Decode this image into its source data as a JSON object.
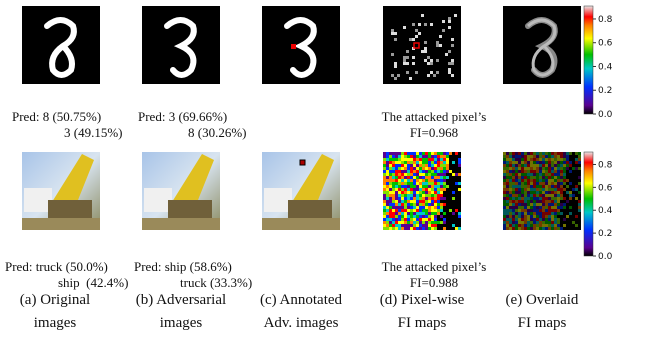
{
  "row1": {
    "original_caption": [
      "Pred: 8 (50.75%)",
      "3 (49.15%)"
    ],
    "adversarial_caption": [
      "Pred: 3 (69.66%)",
      "8 (30.26%)"
    ],
    "fi_caption": [
      "The attacked pixel’s",
      "FI=0.968"
    ]
  },
  "row2": {
    "original_caption": [
      "Pred: truck (50.0%)",
      "ship  (42.4%)"
    ],
    "adversarial_caption": [
      "Pred: ship (58.6%)",
      "truck (33.3%)"
    ],
    "fi_caption": [
      "The attacked pixel’s",
      "FI=0.988"
    ]
  },
  "colorbar_ticks": [
    "0.0",
    "0.2",
    "0.4",
    "0.6",
    "0.8"
  ],
  "subcaptions": [
    [
      "(a) Original",
      "images"
    ],
    [
      "(b) Adversarial",
      "images"
    ],
    [
      "(c) Annotated",
      "Adv. images"
    ],
    [
      "(d) Pixel-wise",
      "FI maps"
    ],
    [
      "(e) Overlaid",
      "FI maps"
    ]
  ]
}
